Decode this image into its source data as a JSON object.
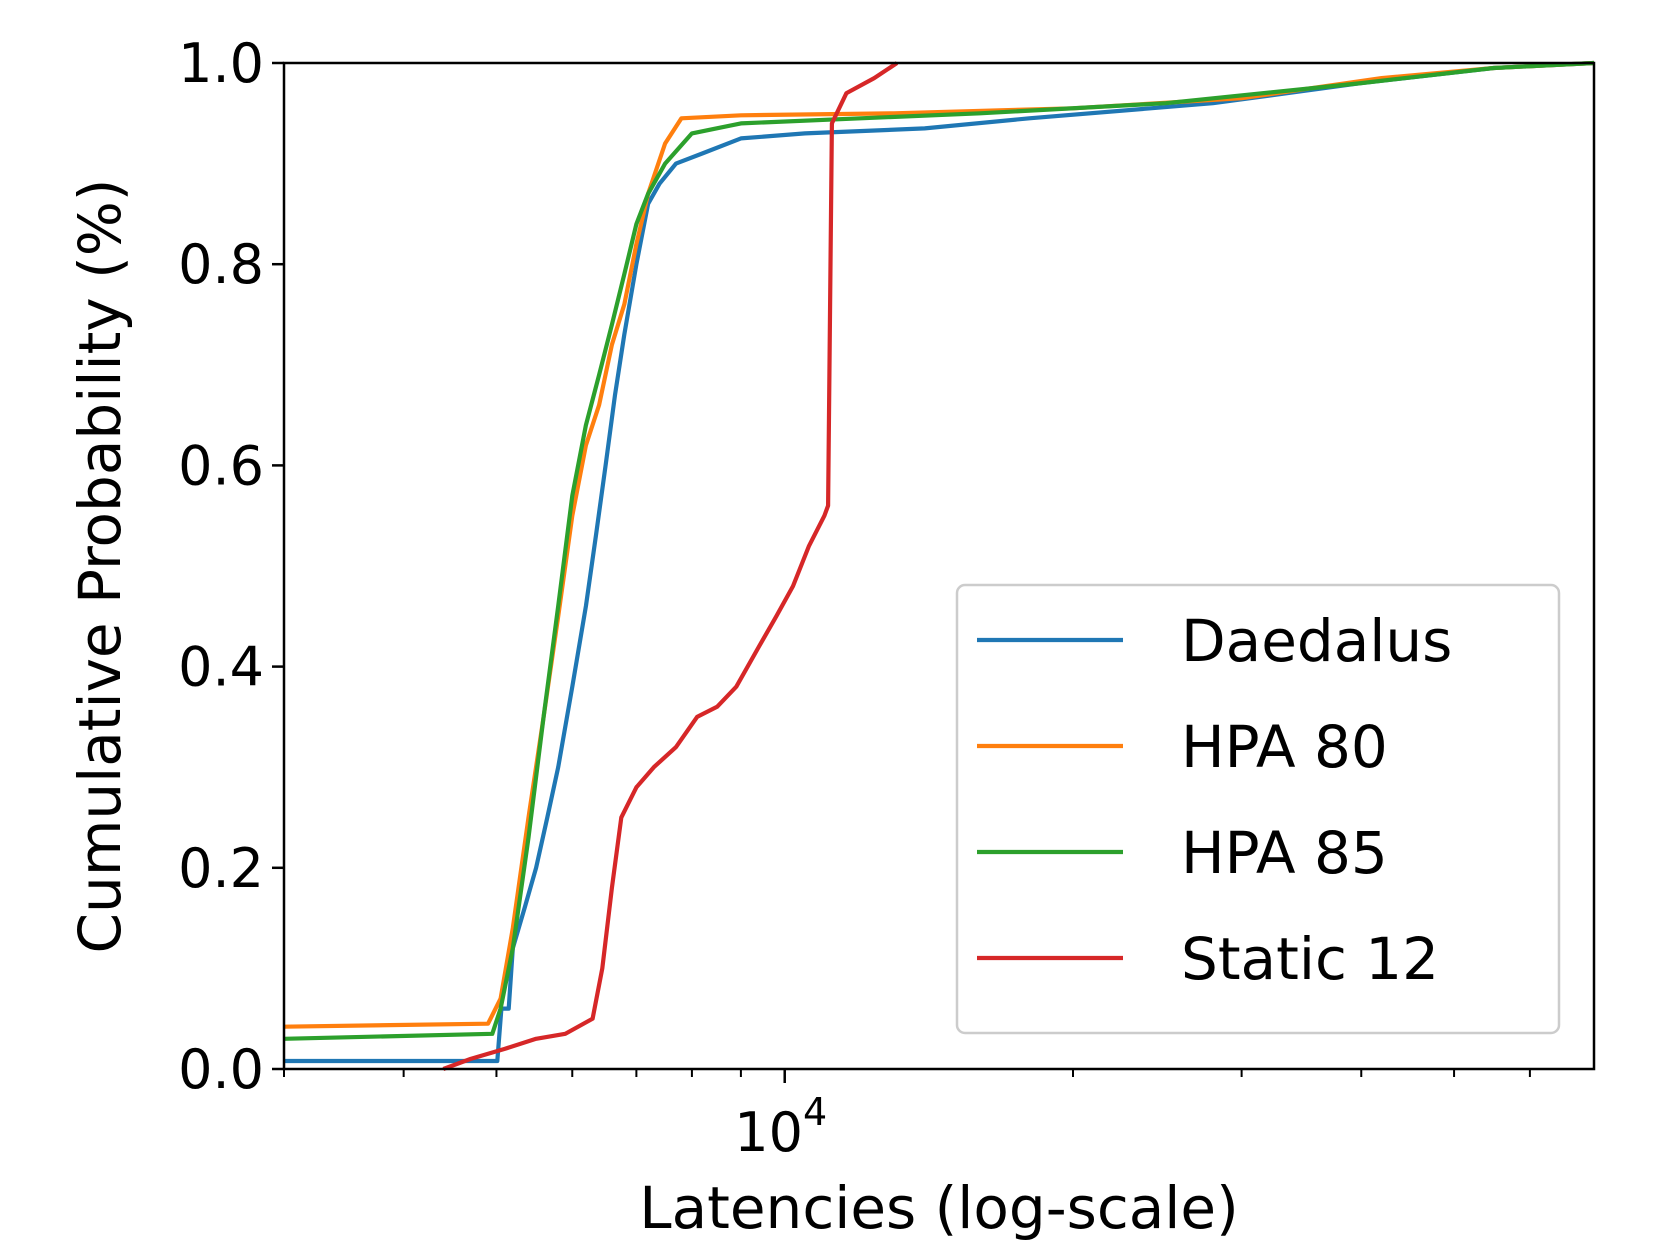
{
  "chart_data": {
    "type": "line",
    "xscale": "log",
    "title": "",
    "xlabel": "Latencies (log-scale)",
    "ylabel": "Cumulative Probability (%)",
    "xlim": [
      3000,
      70000
    ],
    "ylim": [
      0.0,
      1.0
    ],
    "x_major_ticks": [
      {
        "value": 10000,
        "base": "10",
        "exp": "4"
      }
    ],
    "x_minor_ticks": [
      3000,
      4000,
      5000,
      6000,
      7000,
      8000,
      9000,
      20000,
      30000,
      40000,
      50000,
      60000
    ],
    "y_ticks": [
      {
        "value": 0.0,
        "label": "0.0"
      },
      {
        "value": 0.2,
        "label": "0.2"
      },
      {
        "value": 0.4,
        "label": "0.4"
      },
      {
        "value": 0.6,
        "label": "0.6"
      },
      {
        "value": 0.8,
        "label": "0.8"
      },
      {
        "value": 1.0,
        "label": "1.0"
      }
    ],
    "grid": false,
    "legend_position": "lower-right",
    "series": [
      {
        "name": "Daedalus",
        "color": "#1f77b4",
        "points": [
          [
            3000,
            0.008
          ],
          [
            4950,
            0.008
          ],
          [
            5010,
            0.008
          ],
          [
            5060,
            0.06
          ],
          [
            5150,
            0.06
          ],
          [
            5200,
            0.12
          ],
          [
            5350,
            0.16
          ],
          [
            5500,
            0.2
          ],
          [
            5650,
            0.25
          ],
          [
            5800,
            0.3
          ],
          [
            6000,
            0.38
          ],
          [
            6200,
            0.46
          ],
          [
            6350,
            0.53
          ],
          [
            6500,
            0.6
          ],
          [
            6650,
            0.67
          ],
          [
            6800,
            0.73
          ],
          [
            7000,
            0.8
          ],
          [
            7200,
            0.86
          ],
          [
            7400,
            0.88
          ],
          [
            7700,
            0.9
          ],
          [
            8200,
            0.91
          ],
          [
            9000,
            0.925
          ],
          [
            10500,
            0.93
          ],
          [
            14000,
            0.935
          ],
          [
            18000,
            0.945
          ],
          [
            28000,
            0.96
          ],
          [
            40000,
            0.98
          ],
          [
            55000,
            0.995
          ],
          [
            70000,
            1.0
          ]
        ]
      },
      {
        "name": "HPA 80",
        "color": "#ff7f0e",
        "points": [
          [
            3000,
            0.042
          ],
          [
            4900,
            0.045
          ],
          [
            5050,
            0.07
          ],
          [
            5200,
            0.14
          ],
          [
            5400,
            0.25
          ],
          [
            5600,
            0.35
          ],
          [
            5800,
            0.45
          ],
          [
            6000,
            0.55
          ],
          [
            6200,
            0.62
          ],
          [
            6400,
            0.66
          ],
          [
            6600,
            0.72
          ],
          [
            6800,
            0.76
          ],
          [
            7000,
            0.82
          ],
          [
            7200,
            0.87
          ],
          [
            7500,
            0.92
          ],
          [
            7800,
            0.945
          ],
          [
            9000,
            0.948
          ],
          [
            13000,
            0.95
          ],
          [
            20000,
            0.955
          ],
          [
            30000,
            0.965
          ],
          [
            42000,
            0.985
          ],
          [
            55000,
            0.995
          ],
          [
            70000,
            1.0
          ]
        ]
      },
      {
        "name": "HPA 85",
        "color": "#2ca02c",
        "points": [
          [
            3000,
            0.03
          ],
          [
            4950,
            0.035
          ],
          [
            5050,
            0.06
          ],
          [
            5200,
            0.12
          ],
          [
            5400,
            0.23
          ],
          [
            5600,
            0.35
          ],
          [
            5800,
            0.46
          ],
          [
            6000,
            0.57
          ],
          [
            6200,
            0.64
          ],
          [
            6400,
            0.69
          ],
          [
            6600,
            0.74
          ],
          [
            6800,
            0.79
          ],
          [
            7000,
            0.84
          ],
          [
            7200,
            0.87
          ],
          [
            7500,
            0.9
          ],
          [
            8000,
            0.93
          ],
          [
            9000,
            0.94
          ],
          [
            12000,
            0.945
          ],
          [
            16000,
            0.95
          ],
          [
            25000,
            0.96
          ],
          [
            40000,
            0.98
          ],
          [
            55000,
            0.995
          ],
          [
            70000,
            1.0
          ]
        ]
      },
      {
        "name": "Static 12",
        "color": "#d62728",
        "points": [
          [
            4400,
            0.0
          ],
          [
            4700,
            0.01
          ],
          [
            5100,
            0.02
          ],
          [
            5500,
            0.03
          ],
          [
            5900,
            0.035
          ],
          [
            6300,
            0.05
          ],
          [
            6450,
            0.1
          ],
          [
            6600,
            0.18
          ],
          [
            6750,
            0.25
          ],
          [
            7000,
            0.28
          ],
          [
            7300,
            0.3
          ],
          [
            7700,
            0.32
          ],
          [
            8100,
            0.35
          ],
          [
            8500,
            0.36
          ],
          [
            8900,
            0.38
          ],
          [
            9400,
            0.42
          ],
          [
            9800,
            0.45
          ],
          [
            10200,
            0.48
          ],
          [
            10600,
            0.52
          ],
          [
            11000,
            0.55
          ],
          [
            11100,
            0.56
          ],
          [
            11200,
            0.94
          ],
          [
            11600,
            0.97
          ],
          [
            12400,
            0.985
          ],
          [
            13100,
            1.0
          ]
        ]
      }
    ]
  }
}
